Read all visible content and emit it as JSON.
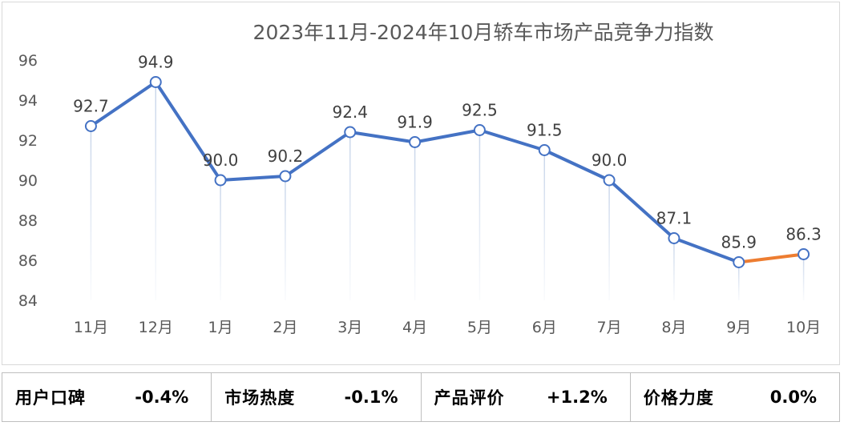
{
  "chart_data": {
    "type": "line",
    "title": "2023年11月-2024年10月轿车市场产品竞争力指数",
    "categories": [
      "11月",
      "12月",
      "1月",
      "2月",
      "3月",
      "4月",
      "5月",
      "6月",
      "7月",
      "8月",
      "9月",
      "10月"
    ],
    "values": [
      92.7,
      94.9,
      90.0,
      90.2,
      92.4,
      91.9,
      92.5,
      91.5,
      90.0,
      87.1,
      85.9,
      86.3
    ],
    "data_labels": [
      "92.7",
      "94.9",
      "90.0",
      "90.2",
      "92.4",
      "91.9",
      "92.5",
      "91.5",
      "90.0",
      "87.1",
      "85.9",
      "86.3"
    ],
    "ylim": [
      84,
      96
    ],
    "yticks": [
      "84",
      "86",
      "88",
      "90",
      "92",
      "94",
      "96"
    ],
    "ytick_values": [
      84,
      86,
      88,
      90,
      92,
      94,
      96
    ],
    "grid": false,
    "colors": {
      "line": "#4472c4",
      "last_segment": "#ed7d31",
      "drop_line": "#c9d6ea"
    }
  },
  "stats": [
    {
      "label": "用户口碑",
      "value": "-0.4%"
    },
    {
      "label": "市场热度",
      "value": "-0.1%"
    },
    {
      "label": "产品评价",
      "value": "+1.2%"
    },
    {
      "label": "价格力度",
      "value": "0.0%"
    }
  ]
}
